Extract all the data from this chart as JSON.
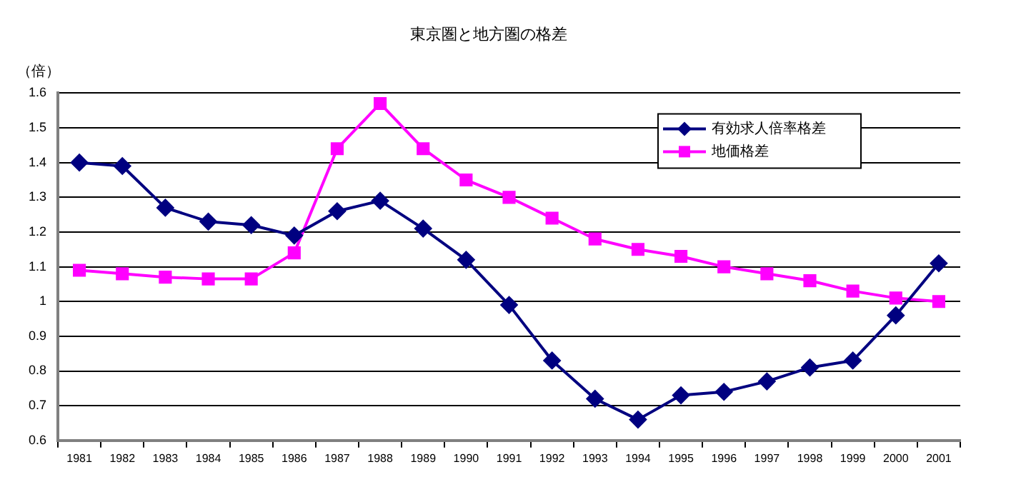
{
  "chart_data": {
    "type": "line",
    "title": "東京圏と地方圏の格差",
    "ylabel": "（倍）",
    "categories": [
      "1981",
      "1982",
      "1983",
      "1984",
      "1985",
      "1986",
      "1987",
      "1988",
      "1989",
      "1990",
      "1991",
      "1992",
      "1993",
      "1994",
      "1995",
      "1996",
      "1997",
      "1998",
      "1999",
      "2000",
      "2001"
    ],
    "series": [
      {
        "name": "有効求人倍率格差",
        "color": "#000080",
        "marker": "diamond",
        "values": [
          1.4,
          1.39,
          1.27,
          1.23,
          1.22,
          1.19,
          1.26,
          1.29,
          1.21,
          1.12,
          0.99,
          0.83,
          0.72,
          0.66,
          0.73,
          0.74,
          0.77,
          0.81,
          0.83,
          0.96,
          1.11
        ]
      },
      {
        "name": "地価格差",
        "color": "#ff00ff",
        "marker": "square",
        "values": [
          1.09,
          1.08,
          1.07,
          1.065,
          1.065,
          1.14,
          1.44,
          1.57,
          1.44,
          1.35,
          1.3,
          1.24,
          1.18,
          1.15,
          1.13,
          1.1,
          1.08,
          1.06,
          1.03,
          1.01,
          1.0
        ]
      }
    ],
    "ylim": [
      0.6,
      1.6
    ],
    "yticks": [
      0.6,
      0.7,
      0.8,
      0.9,
      1,
      1.1,
      1.2,
      1.3,
      1.4,
      1.5,
      1.6
    ],
    "grid": "y",
    "legend": "top right",
    "line_style": "solid"
  }
}
